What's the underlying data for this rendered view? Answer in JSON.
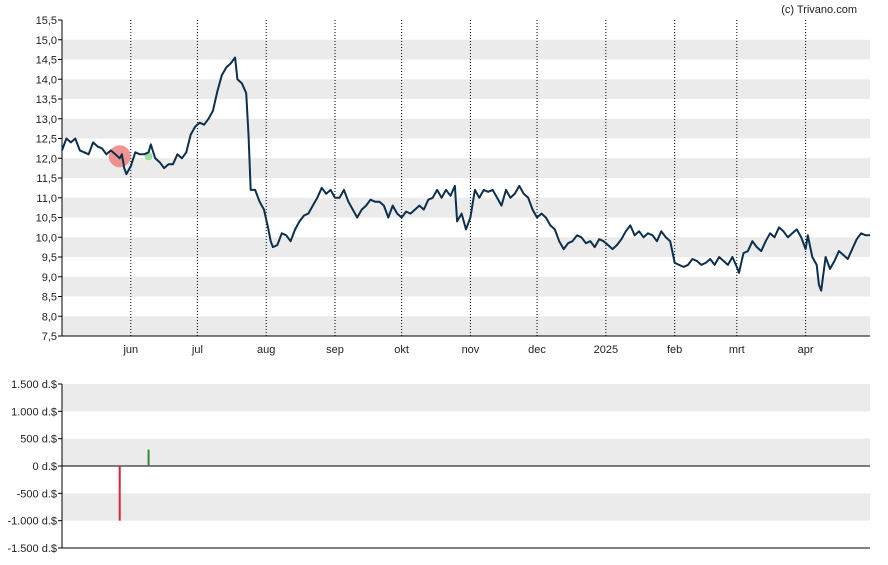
{
  "credit": "(c) Trivano.com",
  "colors": {
    "line": "#0b2f4f",
    "band": "#ebebeb",
    "axis": "#000000",
    "grid": "#000000",
    "sell": "#e0213a",
    "buy": "#2e8b3a",
    "sell_marker": "#f08080",
    "buy_marker": "#90d890"
  },
  "chart_data": [
    {
      "type": "line",
      "title": "",
      "xlabel": "",
      "ylabel": "",
      "ylim": [
        7.5,
        15.5
      ],
      "yticks": [
        "15,5",
        "15,0",
        "14,5",
        "14,0",
        "13,5",
        "13,0",
        "12,5",
        "12,0",
        "11,5",
        "11,0",
        "10,5",
        "10,0",
        "9,5",
        "9,0",
        "8,5",
        "8,0",
        "7,5"
      ],
      "xlim": [
        "2024-05-01",
        "2025-04-30"
      ],
      "xticks": [
        {
          "label": "jun",
          "date": "2024-06-01"
        },
        {
          "label": "jul",
          "date": "2024-07-01"
        },
        {
          "label": "aug",
          "date": "2024-08-01"
        },
        {
          "label": "sep",
          "date": "2024-09-01"
        },
        {
          "label": "okt",
          "date": "2024-10-01"
        },
        {
          "label": "nov",
          "date": "2024-11-01"
        },
        {
          "label": "dec",
          "date": "2024-12-01"
        },
        {
          "label": "2025",
          "date": "2025-01-01"
        },
        {
          "label": "feb",
          "date": "2025-02-01"
        },
        {
          "label": "mrt",
          "date": "2025-03-01"
        },
        {
          "label": "apr",
          "date": "2025-04-01"
        }
      ],
      "grid": "dotted vertical lines at month ticks, alternating horizontal bands",
      "series": [
        {
          "points": [
            [
              "2024-05-01",
              12.2
            ],
            [
              "2024-05-03",
              12.5
            ],
            [
              "2024-05-05",
              12.4
            ],
            [
              "2024-05-07",
              12.5
            ],
            [
              "2024-05-09",
              12.2
            ],
            [
              "2024-05-11",
              12.15
            ],
            [
              "2024-05-13",
              12.1
            ],
            [
              "2024-05-15",
              12.4
            ],
            [
              "2024-05-17",
              12.3
            ],
            [
              "2024-05-19",
              12.25
            ],
            [
              "2024-05-21",
              12.1
            ],
            [
              "2024-05-23",
              12.2
            ],
            [
              "2024-05-25",
              12.1
            ],
            [
              "2024-05-27",
              12.0
            ],
            [
              "2024-05-28",
              12.1
            ],
            [
              "2024-05-29",
              11.75
            ],
            [
              "2024-05-30",
              11.6
            ],
            [
              "2024-06-01",
              11.8
            ],
            [
              "2024-06-03",
              12.15
            ],
            [
              "2024-06-05",
              12.1
            ],
            [
              "2024-06-07",
              12.1
            ],
            [
              "2024-06-09",
              12.15
            ],
            [
              "2024-06-10",
              12.35
            ],
            [
              "2024-06-12",
              12.0
            ],
            [
              "2024-06-14",
              11.9
            ],
            [
              "2024-06-16",
              11.75
            ],
            [
              "2024-06-18",
              11.85
            ],
            [
              "2024-06-20",
              11.85
            ],
            [
              "2024-06-22",
              12.1
            ],
            [
              "2024-06-24",
              12.0
            ],
            [
              "2024-06-26",
              12.15
            ],
            [
              "2024-06-28",
              12.6
            ],
            [
              "2024-06-30",
              12.8
            ],
            [
              "2024-07-02",
              12.9
            ],
            [
              "2024-07-04",
              12.85
            ],
            [
              "2024-07-06",
              13.0
            ],
            [
              "2024-07-08",
              13.2
            ],
            [
              "2024-07-10",
              13.7
            ],
            [
              "2024-07-12",
              14.1
            ],
            [
              "2024-07-14",
              14.3
            ],
            [
              "2024-07-16",
              14.4
            ],
            [
              "2024-07-18",
              14.55
            ],
            [
              "2024-07-19",
              14.0
            ],
            [
              "2024-07-21",
              13.9
            ],
            [
              "2024-07-23",
              13.65
            ],
            [
              "2024-07-24",
              12.6
            ],
            [
              "2024-07-25",
              11.2
            ],
            [
              "2024-07-27",
              11.2
            ],
            [
              "2024-07-29",
              10.9
            ],
            [
              "2024-07-31",
              10.7
            ],
            [
              "2024-08-02",
              10.2
            ],
            [
              "2024-08-03",
              9.9
            ],
            [
              "2024-08-04",
              9.75
            ],
            [
              "2024-08-06",
              9.8
            ],
            [
              "2024-08-08",
              10.1
            ],
            [
              "2024-08-10",
              10.05
            ],
            [
              "2024-08-12",
              9.9
            ],
            [
              "2024-08-14",
              10.2
            ],
            [
              "2024-08-16",
              10.4
            ],
            [
              "2024-08-18",
              10.55
            ],
            [
              "2024-08-20",
              10.6
            ],
            [
              "2024-08-22",
              10.8
            ],
            [
              "2024-08-24",
              11.0
            ],
            [
              "2024-08-26",
              11.25
            ],
            [
              "2024-08-28",
              11.1
            ],
            [
              "2024-08-30",
              11.2
            ],
            [
              "2024-09-01",
              11.0
            ],
            [
              "2024-09-03",
              11.0
            ],
            [
              "2024-09-05",
              11.2
            ],
            [
              "2024-09-07",
              10.9
            ],
            [
              "2024-09-09",
              10.7
            ],
            [
              "2024-09-11",
              10.5
            ],
            [
              "2024-09-13",
              10.7
            ],
            [
              "2024-09-15",
              10.8
            ],
            [
              "2024-09-17",
              10.95
            ],
            [
              "2024-09-19",
              10.9
            ],
            [
              "2024-09-21",
              10.9
            ],
            [
              "2024-09-23",
              10.8
            ],
            [
              "2024-09-25",
              10.5
            ],
            [
              "2024-09-27",
              10.8
            ],
            [
              "2024-09-29",
              10.6
            ],
            [
              "2024-10-01",
              10.5
            ],
            [
              "2024-10-03",
              10.65
            ],
            [
              "2024-10-05",
              10.6
            ],
            [
              "2024-10-07",
              10.7
            ],
            [
              "2024-10-09",
              10.8
            ],
            [
              "2024-10-11",
              10.7
            ],
            [
              "2024-10-13",
              10.95
            ],
            [
              "2024-10-15",
              11.0
            ],
            [
              "2024-10-17",
              11.2
            ],
            [
              "2024-10-19",
              11.0
            ],
            [
              "2024-10-21",
              11.2
            ],
            [
              "2024-10-23",
              11.05
            ],
            [
              "2024-10-25",
              11.3
            ],
            [
              "2024-10-26",
              10.4
            ],
            [
              "2024-10-28",
              10.6
            ],
            [
              "2024-10-30",
              10.2
            ],
            [
              "2024-11-01",
              10.5
            ],
            [
              "2024-11-03",
              11.2
            ],
            [
              "2024-11-05",
              11.0
            ],
            [
              "2024-11-07",
              11.2
            ],
            [
              "2024-11-09",
              11.15
            ],
            [
              "2024-11-11",
              11.2
            ],
            [
              "2024-11-13",
              11.0
            ],
            [
              "2024-11-15",
              10.8
            ],
            [
              "2024-11-17",
              11.2
            ],
            [
              "2024-11-19",
              11.0
            ],
            [
              "2024-11-21",
              11.1
            ],
            [
              "2024-11-23",
              11.3
            ],
            [
              "2024-11-25",
              11.1
            ],
            [
              "2024-11-27",
              11.0
            ],
            [
              "2024-11-29",
              10.7
            ],
            [
              "2024-12-01",
              10.5
            ],
            [
              "2024-12-03",
              10.6
            ],
            [
              "2024-12-05",
              10.5
            ],
            [
              "2024-12-07",
              10.3
            ],
            [
              "2024-12-09",
              10.2
            ],
            [
              "2024-12-11",
              9.9
            ],
            [
              "2024-12-13",
              9.7
            ],
            [
              "2024-12-15",
              9.85
            ],
            [
              "2024-12-17",
              9.9
            ],
            [
              "2024-12-19",
              10.05
            ],
            [
              "2024-12-21",
              10.0
            ],
            [
              "2024-12-23",
              9.85
            ],
            [
              "2024-12-25",
              9.9
            ],
            [
              "2024-12-27",
              9.75
            ],
            [
              "2024-12-29",
              9.95
            ],
            [
              "2024-12-31",
              9.9
            ],
            [
              "2025-01-02",
              9.8
            ],
            [
              "2025-01-04",
              9.7
            ],
            [
              "2025-01-06",
              9.8
            ],
            [
              "2025-01-08",
              9.95
            ],
            [
              "2025-01-10",
              10.15
            ],
            [
              "2025-01-12",
              10.3
            ],
            [
              "2025-01-14",
              10.05
            ],
            [
              "2025-01-16",
              10.15
            ],
            [
              "2025-01-18",
              10.0
            ],
            [
              "2025-01-20",
              10.1
            ],
            [
              "2025-01-22",
              10.05
            ],
            [
              "2025-01-24",
              9.9
            ],
            [
              "2025-01-26",
              10.15
            ],
            [
              "2025-01-28",
              10.0
            ],
            [
              "2025-01-30",
              9.9
            ],
            [
              "2025-02-01",
              9.35
            ],
            [
              "2025-02-03",
              9.3
            ],
            [
              "2025-02-05",
              9.25
            ],
            [
              "2025-02-07",
              9.3
            ],
            [
              "2025-02-09",
              9.45
            ],
            [
              "2025-02-11",
              9.4
            ],
            [
              "2025-02-13",
              9.3
            ],
            [
              "2025-02-15",
              9.35
            ],
            [
              "2025-02-17",
              9.45
            ],
            [
              "2025-02-19",
              9.3
            ],
            [
              "2025-02-21",
              9.5
            ],
            [
              "2025-02-23",
              9.4
            ],
            [
              "2025-02-25",
              9.3
            ],
            [
              "2025-02-27",
              9.5
            ],
            [
              "2025-03-01",
              9.25
            ],
            [
              "2025-03-02",
              9.1
            ],
            [
              "2025-03-04",
              9.6
            ],
            [
              "2025-03-06",
              9.65
            ],
            [
              "2025-03-08",
              9.9
            ],
            [
              "2025-03-10",
              9.75
            ],
            [
              "2025-03-12",
              9.65
            ],
            [
              "2025-03-14",
              9.9
            ],
            [
              "2025-03-16",
              10.1
            ],
            [
              "2025-03-18",
              10.0
            ],
            [
              "2025-03-20",
              10.25
            ],
            [
              "2025-03-22",
              10.15
            ],
            [
              "2025-03-24",
              10.0
            ],
            [
              "2025-03-26",
              10.1
            ],
            [
              "2025-03-28",
              10.2
            ],
            [
              "2025-03-30",
              10.0
            ],
            [
              "2025-04-01",
              9.7
            ],
            [
              "2025-04-02",
              10.05
            ],
            [
              "2025-04-04",
              9.5
            ],
            [
              "2025-04-06",
              9.3
            ],
            [
              "2025-04-07",
              8.8
            ],
            [
              "2025-04-08",
              8.65
            ],
            [
              "2025-04-10",
              9.5
            ],
            [
              "2025-04-12",
              9.2
            ],
            [
              "2025-04-14",
              9.4
            ],
            [
              "2025-04-16",
              9.65
            ],
            [
              "2025-04-18",
              9.55
            ],
            [
              "2025-04-20",
              9.45
            ],
            [
              "2025-04-22",
              9.7
            ],
            [
              "2025-04-24",
              9.95
            ],
            [
              "2025-04-26",
              10.1
            ],
            [
              "2025-04-28",
              10.05
            ],
            [
              "2025-04-30",
              10.05
            ]
          ]
        }
      ],
      "markers": [
        {
          "kind": "sell",
          "date": "2024-05-27",
          "value": 12.05
        },
        {
          "kind": "buy",
          "date": "2024-06-09",
          "value": 12.05
        }
      ]
    },
    {
      "type": "bar",
      "title": "",
      "xlabel": "",
      "ylabel": "",
      "ylim": [
        -1500,
        1500
      ],
      "yticks": [
        "1.500 d.$",
        "1.000 d.$",
        "500 d.$",
        "0 d.$",
        "-500 d.$",
        "-1.000 d.$",
        "-1.500 d.$"
      ],
      "xlim": [
        "2024-05-01",
        "2025-04-30"
      ],
      "bars": [
        {
          "date": "2024-05-27",
          "value": -1000,
          "kind": "sell"
        },
        {
          "date": "2024-06-09",
          "value": 300,
          "kind": "buy"
        }
      ]
    }
  ]
}
